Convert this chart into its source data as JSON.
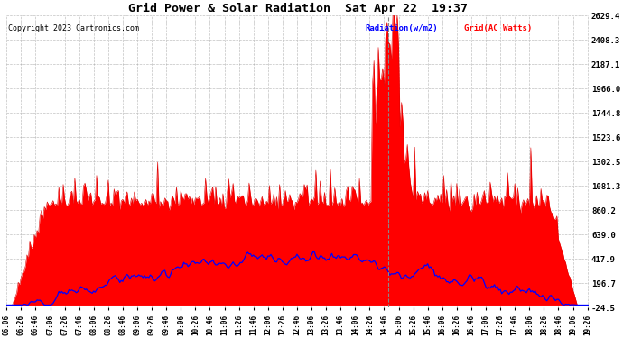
{
  "title": "Grid Power & Solar Radiation  Sat Apr 22  19:37",
  "copyright": "Copyright 2023 Cartronics.com",
  "legend_radiation": "Radiation(w/m2)",
  "legend_grid": "Grid(AC Watts)",
  "yticks": [
    2629.4,
    2408.3,
    2187.1,
    1966.0,
    1744.8,
    1523.6,
    1302.5,
    1081.3,
    860.2,
    639.0,
    417.9,
    196.7,
    -24.5
  ],
  "ylim_min": -24.5,
  "ylim_max": 2629.4,
  "color_radiation": "#0000ff",
  "color_grid_fill": "#ff0000",
  "color_grid_line": "#dd0000",
  "background_color": "#ffffff",
  "grid_color": "#999999",
  "title_color": "#000000",
  "copyright_color": "#000000",
  "ac_watts_color": "#ff0000",
  "vline_color": "#888888",
  "vline_time_minutes": 892
}
